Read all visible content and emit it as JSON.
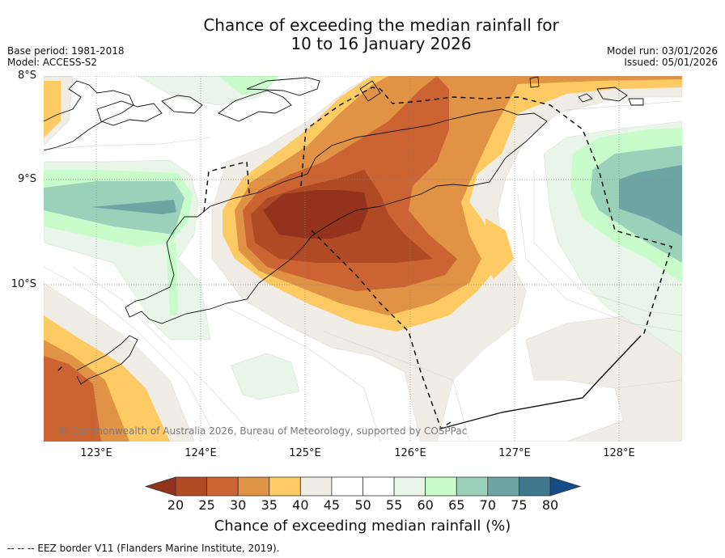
{
  "header": {
    "title_line1": "Chance of exceeding the median rainfall for",
    "title_line2": "10 to 16 January 2026",
    "base_period": "Base period: 1981-2018",
    "model": "Model: ACCESS-S2",
    "model_run": "Model run: 03/01/2026",
    "issued": "Issued: 05/01/2026"
  },
  "map": {
    "lat_labels": [
      "8°S",
      "9°S",
      "10°S"
    ],
    "lon_labels": [
      "123°E",
      "124°E",
      "125°E",
      "126°E",
      "127°E",
      "128°E"
    ],
    "copyright": "© Commonwealth of Australia 2026, Bureau of Meteorology, supported by COSPPac",
    "lon_range": [
      122.5,
      128.6
    ],
    "lat_range": [
      -8.0,
      -11.5
    ]
  },
  "colorbar": {
    "tick_labels": [
      "20",
      "25",
      "30",
      "35",
      "40",
      "45",
      "50",
      "55",
      "60",
      "65",
      "70",
      "75",
      "80"
    ],
    "colors": [
      "#93331d",
      "#b04a25",
      "#cb6432",
      "#e19345",
      "#fdca64",
      "#f0ece6",
      "#ffffff",
      "#ffffff",
      "#e9f5e9",
      "#c8fccb",
      "#9bd1bb",
      "#6fa4a5",
      "#40788f",
      "#154c88"
    ],
    "title": "Chance of exceeding median rainfall (%)"
  },
  "footnote": "--  --  -- EEZ border V11 (Flanders Marine Institute, 2019)."
}
